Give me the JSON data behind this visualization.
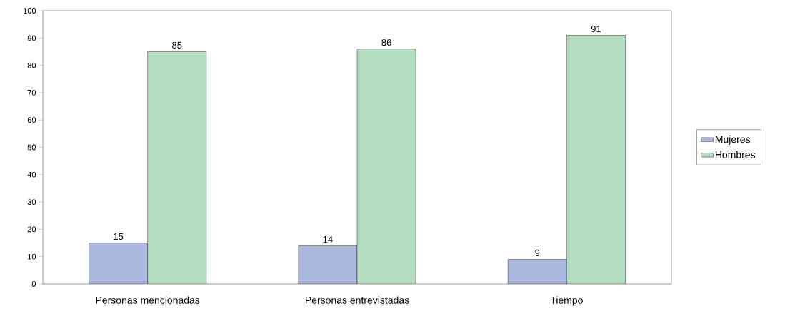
{
  "chart_data": {
    "type": "bar",
    "categories": [
      "Personas mencionadas",
      "Personas entrevistadas",
      "Tiempo"
    ],
    "series": [
      {
        "name": "Mujeres",
        "color": "#aab8e0",
        "values": [
          15,
          14,
          9
        ]
      },
      {
        "name": "Hombres",
        "color": "#b3dec0",
        "values": [
          85,
          86,
          91
        ]
      }
    ],
    "ylim": [
      0,
      100
    ],
    "yticks": [
      0,
      10,
      20,
      30,
      40,
      50,
      60,
      70,
      80,
      90,
      100
    ],
    "data_labels": true,
    "legend": "right",
    "grid": false
  }
}
